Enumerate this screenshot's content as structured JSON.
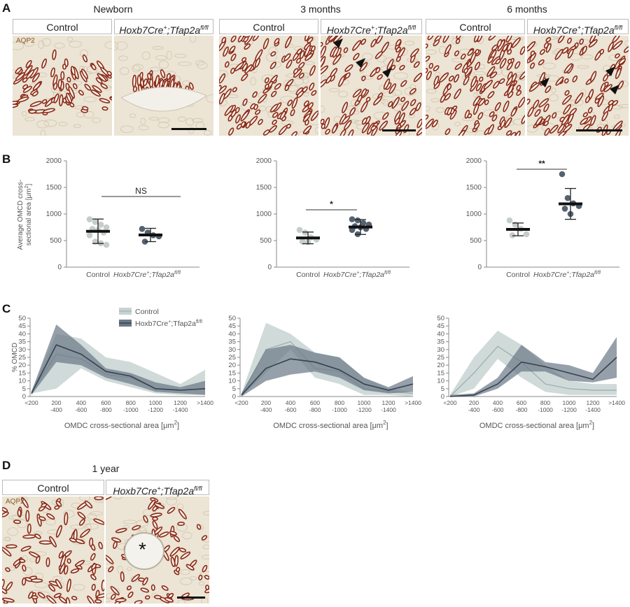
{
  "panels": {
    "A": {
      "letter": "A",
      "ages": [
        "Newborn",
        "3 months",
        "6 months"
      ],
      "groups": {
        "control": "Control",
        "mutant_main": "Hoxb7Cre",
        "mutant_sup": "+",
        "mutant_mid": ";Tfap2a",
        "mutant_sup2": "fl/fl"
      },
      "stain": "AQP2",
      "colors": {
        "tissue": "#ece4d4",
        "tubule": "#8b2a18",
        "lumen": "#f6f2ea"
      }
    },
    "B": {
      "letter": "B",
      "ylabel_line1": "Average OMCD cross-",
      "ylabel_line2": "sectional area [μm",
      "ylabel_sup": "2",
      "ylabel_end": "]",
      "yticks": [
        "0",
        "500",
        "1000",
        "1500",
        "2000"
      ],
      "xlabel_control": "Control",
      "xlabel_mutant": "Hoxb7Cre",
      "xlabel_mutant_sup": "+",
      "xlabel_mutant_mid": ";Tfap2a",
      "xlabel_mutant_sup2": "fl/fl",
      "significance": [
        "NS",
        "*",
        "**"
      ]
    },
    "C": {
      "letter": "C",
      "ylabel": "% OMCD",
      "yticks": [
        "0",
        "5",
        "10",
        "15",
        "20",
        "25",
        "30",
        "35",
        "40",
        "45",
        "50"
      ],
      "xticks_line1": [
        "<200",
        "200",
        "400",
        "600",
        "800",
        "1000",
        "1200",
        ">1400"
      ],
      "xticks_line2": [
        "",
        "-400",
        "-600",
        "-800",
        "-1000",
        "-1200",
        "-1400",
        ""
      ],
      "xlabel": "OMDC cross-sectional area [μm",
      "xlabel_sup": "2",
      "xlabel_end": "]",
      "legend_control": "Control",
      "legend_mutant": "Hoxb7Cre",
      "legend_mutant_sup": "+",
      "legend_mutant_mid": ";Tfap2a",
      "legend_mutant_sup2": "fl/fl",
      "colors": {
        "control": "#c7d3d2",
        "control_line": "#9aabab",
        "mutant": "#6a7886",
        "mutant_line": "#36434f"
      }
    },
    "D": {
      "letter": "D",
      "age": "1 year",
      "stain": "AQP2",
      "asterisk": "*"
    }
  },
  "chart_data": [
    {
      "type": "scatter",
      "panel": "B-newborn",
      "ylim": [
        0,
        2000
      ],
      "categories": [
        "Control",
        "Hoxb7Cre+;Tfap2afl/fl"
      ],
      "series": [
        {
          "values": [
            900,
            850,
            800,
            750,
            720,
            700,
            650,
            600,
            480,
            450,
            420
          ],
          "mean": 675,
          "sd": 230,
          "color": "#c5cccc"
        },
        {
          "values": [
            720,
            650,
            600,
            580,
            480
          ],
          "mean": 605,
          "sd": 125,
          "color": "#556270"
        }
      ],
      "significance": "NS"
    },
    {
      "type": "scatter",
      "panel": "B-3months",
      "ylim": [
        0,
        2000
      ],
      "categories": [
        "Control",
        "Hoxb7Cre+;Tfap2afl/fl"
      ],
      "series": [
        {
          "values": [
            700,
            650,
            560,
            520,
            480,
            470
          ],
          "mean": 550,
          "sd": 110,
          "color": "#c5cccc"
        },
        {
          "values": [
            900,
            880,
            830,
            800,
            770,
            750,
            720,
            700,
            620
          ],
          "mean": 755,
          "sd": 140,
          "color": "#556270"
        }
      ],
      "significance": "*"
    },
    {
      "type": "scatter",
      "panel": "B-6months",
      "ylim": [
        0,
        2000
      ],
      "categories": [
        "Control",
        "Hoxb7Cre+;Tfap2afl/fl"
      ],
      "series": [
        {
          "values": [
            880,
            800,
            720,
            620,
            600
          ],
          "mean": 710,
          "sd": 120,
          "color": "#c5cccc"
        },
        {
          "values": [
            1750,
            1300,
            1200,
            1150,
            1100,
            1000
          ],
          "mean": 1190,
          "sd": 290,
          "color": "#556270"
        }
      ],
      "significance": "**"
    },
    {
      "type": "area",
      "panel": "C-newborn",
      "ylim": [
        0,
        50
      ],
      "x": [
        "<200",
        "200-400",
        "400-600",
        "600-800",
        "800-1000",
        "1000-1200",
        "1200-1400",
        ">1400"
      ],
      "series": [
        {
          "legend": "Control",
          "mean": [
            3,
            27,
            24,
            14,
            12,
            5,
            4,
            5
          ],
          "upper": [
            4,
            40,
            37,
            25,
            22,
            15,
            8,
            17
          ],
          "lower": [
            2,
            5,
            18,
            10,
            6,
            2,
            1,
            1
          ]
        },
        {
          "legend": "Hoxb7Cre+;Tfap2afl/fl",
          "mean": [
            2,
            33,
            27,
            16,
            13,
            5,
            4,
            5
          ],
          "upper": [
            3,
            46,
            33,
            18,
            15,
            9,
            6,
            10
          ],
          "lower": [
            1,
            22,
            20,
            12,
            8,
            3,
            2,
            1
          ]
        }
      ]
    },
    {
      "type": "area",
      "panel": "C-3months",
      "ylim": [
        0,
        50
      ],
      "x": [
        "<200",
        "200-400",
        "400-600",
        "600-800",
        "800-1000",
        "1000-1200",
        "1200-1400",
        ">1400"
      ],
      "series": [
        {
          "legend": "Control",
          "mean": [
            1,
            30,
            35,
            18,
            16,
            5,
            3,
            2
          ],
          "upper": [
            2,
            47,
            40,
            28,
            25,
            12,
            5,
            3
          ],
          "lower": [
            0,
            15,
            30,
            12,
            8,
            1,
            1,
            0
          ]
        },
        {
          "legend": "Hoxb7Cre+;Tfap2afl/fl",
          "mean": [
            1,
            18,
            24,
            22,
            17,
            8,
            4,
            8
          ],
          "upper": [
            2,
            30,
            33,
            28,
            25,
            12,
            6,
            13
          ],
          "lower": [
            0,
            10,
            14,
            16,
            12,
            4,
            2,
            3
          ]
        }
      ]
    },
    {
      "type": "area",
      "panel": "C-6months",
      "ylim": [
        0,
        50
      ],
      "x": [
        "<200",
        "200-400",
        "400-600",
        "600-800",
        "800-1000",
        "1000-1200",
        "1200-1400",
        ">1400"
      ],
      "series": [
        {
          "legend": "Control",
          "mean": [
            0,
            15,
            32,
            22,
            8,
            5,
            4,
            4
          ],
          "upper": [
            1,
            25,
            42,
            33,
            20,
            10,
            8,
            8
          ],
          "lower": [
            0,
            5,
            24,
            12,
            3,
            1,
            1,
            1
          ]
        },
        {
          "legend": "Hoxb7Cre+;Tfap2afl/fl",
          "mean": [
            0,
            1,
            8,
            22,
            19,
            15,
            11,
            25
          ],
          "upper": [
            1,
            2,
            12,
            33,
            22,
            20,
            15,
            38
          ],
          "lower": [
            0,
            0,
            5,
            16,
            16,
            10,
            9,
            12
          ]
        }
      ]
    }
  ]
}
